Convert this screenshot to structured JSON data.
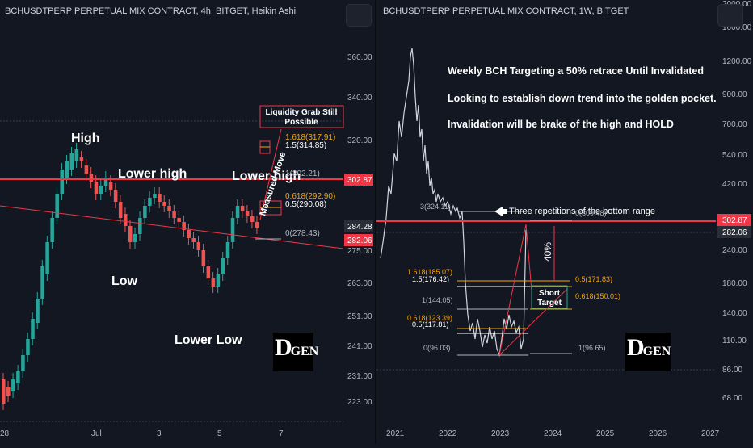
{
  "left": {
    "title": "BCHUSDTPERP PERPETUAL MIX CONTRACT, 4h, BITGET, Heikin Ashi",
    "price_axis": [
      "360.00",
      "340.00",
      "320.00",
      "302.87",
      "284.28",
      "282.06",
      "275.00",
      "263.00",
      "251.00",
      "241.00",
      "231.00",
      "223.00"
    ],
    "price_badges": [
      {
        "text": "302.87",
        "color": "#f23645"
      },
      {
        "text": "284.28",
        "color": "#2a2e39"
      },
      {
        "text": "282.06",
        "color": "#f23645"
      }
    ],
    "time_axis": [
      "28",
      "Jul",
      "3",
      "5",
      "7"
    ],
    "annotations": {
      "high": "High",
      "lower_high_1": "Lower high",
      "lower_high_2": "Lower high",
      "low": "Low",
      "lower_low": "Lower Low",
      "measured_move": "Measured Move",
      "liquidity": [
        "Liquidity Grab Still",
        "Possible"
      ]
    },
    "fib_labels": [
      {
        "text": "1.618(317.91)",
        "color": "#f7a600"
      },
      {
        "text": "1.5(314.85)",
        "color": "#ffffff"
      },
      {
        "text": "1(302.21)",
        "color": "#b2b5be"
      },
      {
        "text": "0.618(292.90)",
        "color": "#f7a600"
      },
      {
        "text": "0.5(290.08)",
        "color": "#ffffff"
      },
      {
        "text": "0(278.43)",
        "color": "#b2b5be"
      }
    ],
    "logo": {
      "d": "D",
      "gen": "GEN"
    }
  },
  "right": {
    "title": "BCHUSDTPERP PERPETUAL MIX CONTRACT, 1W, BITGET",
    "price_axis": [
      "2000.00",
      "1600.00",
      "1200.00",
      "900.00",
      "700.00",
      "540.00",
      "420.00",
      "302.87",
      "282.06",
      "240.00",
      "180.00",
      "140.00",
      "110.00",
      "86.00",
      "68.00"
    ],
    "price_badges": [
      {
        "text": "302.87",
        "color": "#f23645"
      },
      {
        "text": "282.06",
        "color": "#2a2e39"
      }
    ],
    "time_axis": [
      "2021",
      "2022",
      "2023",
      "2024",
      "2025",
      "2026",
      "2027"
    ],
    "notes": [
      "Weekly BCH Targeting a 50% retrace Until Invalidated",
      "Looking to establish down trend into the golden pocket.",
      "Invalidation will be brake of the high and HOLD"
    ],
    "three_reps": "Three repetitions of the bottom range",
    "fib_left": [
      {
        "text": "3(324.11)",
        "color": "#b2b5be"
      },
      {
        "text": "1.618(185.07)",
        "color": "#f7a600"
      },
      {
        "text": "1.5(176.42)",
        "color": "#ffffff"
      },
      {
        "text": "1(144.05)",
        "color": "#b2b5be"
      },
      {
        "text": "0.618(123.39)",
        "color": "#f7a600"
      },
      {
        "text": "0.5(117.81)",
        "color": "#ffffff"
      },
      {
        "text": "0(96.03)",
        "color": "#b2b5be"
      }
    ],
    "fib_right": [
      {
        "text": "0(309.48)",
        "color": "#b2b5be"
      },
      {
        "text": "0.5(171.83)",
        "color": "#f7a600"
      },
      {
        "text": "0.618(150.01)",
        "color": "#f7a600"
      },
      {
        "text": "1(96.65)",
        "color": "#b2b5be"
      }
    ],
    "percent": "40%",
    "short_target": [
      "Short",
      "Target"
    ],
    "logo": {
      "d": "D",
      "gen": "GEN"
    }
  }
}
